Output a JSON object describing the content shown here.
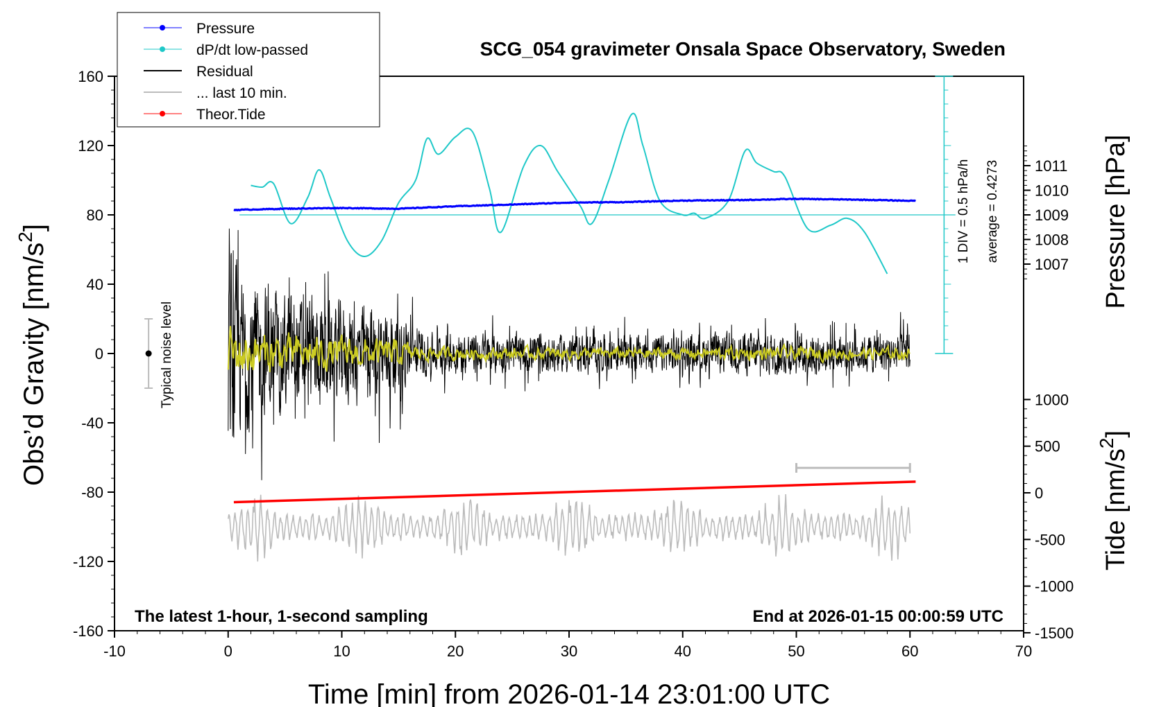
{
  "title": "SCG_054 gravimeter Onsala Space Observatory, Sweden",
  "footer_left": "The latest 1-hour, 1-second sampling",
  "footer_right": "End at 2026-01-15 00:00:59 UTC",
  "legend": {
    "pressure": "Pressure",
    "dpdt": "dP/dt low-passed",
    "residual": "Residual",
    "last10": "... last 10 min.",
    "tide": "Theor.Tide"
  },
  "noise_label": "Typical noise level",
  "dpdt_scale": {
    "line1": "1 DIV = 0.5 hPa/h",
    "line2": "average = 0.4273"
  },
  "colors": {
    "pressure": "#0000ff",
    "dpdt": "#1ec8c8",
    "residual": "#000000",
    "last10": "#bbbbbb",
    "tide": "#ff0000",
    "residual_lowpass": "#cccc22"
  },
  "chart_data": {
    "type": "line",
    "title": "SCG_054 gravimeter Onsala Space Observatory, Sweden",
    "xlabel": "Time [min] from 2026-01-14 23:01:00 UTC",
    "xlim": [
      -10,
      70
    ],
    "x_ticks": [
      "-10",
      "0",
      "10",
      "20",
      "30",
      "40",
      "50",
      "60",
      "70"
    ],
    "left_axis": {
      "label": "Obs'd Gravity [nm/s²]",
      "label_main": "Obs’d Gravity [nm/s",
      "label_sup": "2",
      "label_end": "]",
      "ylim": [
        -160,
        160
      ],
      "ticks": [
        "160",
        "120",
        "80",
        "40",
        "0",
        "-40",
        "-80",
        "-120",
        "-160"
      ]
    },
    "pressure_axis": {
      "label": "Pressure [hPa]",
      "ticks": [
        "1011",
        "1010",
        "1009",
        "1008",
        "1007"
      ],
      "range_shown": [
        1006.2,
        1011.9
      ]
    },
    "tide_axis": {
      "label": "Tide [nm/s²]",
      "label_main": "Tide [nm/s",
      "label_sup": "2",
      "label_end": "]",
      "ticks": [
        "1000",
        "500",
        "0",
        "-500",
        "-1000",
        "-1500"
      ],
      "range_shown": [
        -1500,
        1000
      ]
    },
    "noise_bar": {
      "x": -7,
      "center": 0,
      "low": -20,
      "high": 20
    },
    "dpdt_reference": {
      "value_left_units": 80
    },
    "series": [
      {
        "name": "Pressure",
        "axis": "pressure",
        "x": [
          0.5,
          5,
          10,
          15,
          20,
          25,
          30,
          35,
          40,
          45,
          50,
          55,
          60.5
        ],
        "values": [
          1009.2,
          1009.25,
          1009.28,
          1009.25,
          1009.35,
          1009.42,
          1009.5,
          1009.52,
          1009.58,
          1009.6,
          1009.65,
          1009.62,
          1009.57
        ]
      },
      {
        "name": "dP/dt low-passed",
        "axis": "left",
        "x": [
          2,
          3,
          4,
          5.5,
          7,
          8,
          9,
          10.5,
          12,
          13.5,
          15,
          16.5,
          17.5,
          18.5,
          20,
          21.5,
          23,
          24,
          26,
          27.5,
          29,
          31,
          32,
          33.5,
          35.5,
          36.5,
          38,
          40,
          41,
          42,
          44,
          45.5,
          46.5,
          48,
          49,
          51,
          53,
          54.5,
          56,
          58
        ],
        "values": [
          97,
          96,
          98,
          75,
          90,
          106,
          90,
          65,
          56,
          65,
          87,
          100,
          124,
          115,
          125,
          128,
          95,
          70,
          108,
          120,
          105,
          85,
          75,
          100,
          138,
          120,
          88,
          80,
          81,
          78,
          88,
          117,
          110,
          105,
          102,
          72,
          74,
          78,
          70,
          46
        ]
      },
      {
        "name": "Residual",
        "axis": "left",
        "x": [
          0,
          60
        ],
        "amplitude_envelope": {
          "x": [
            0,
            2,
            5,
            10,
            15,
            17,
            20,
            30,
            40,
            50,
            55,
            60
          ],
          "values": [
            60,
            45,
            38,
            32,
            28,
            14,
            13,
            12,
            12,
            14,
            12,
            12
          ]
        }
      },
      {
        "name": "... last 10 min.",
        "axis": "left",
        "x_plotted": [
          0,
          60
        ],
        "center": -100,
        "range": [
          -125,
          -65
        ]
      },
      {
        "name": "Theor.Tide",
        "axis": "tide",
        "x": [
          0.5,
          60.5
        ],
        "values": [
          -100,
          120
        ]
      }
    ],
    "last10_bracket": {
      "x": [
        50,
        60
      ]
    },
    "grid": false,
    "legend_position": "top-left"
  }
}
